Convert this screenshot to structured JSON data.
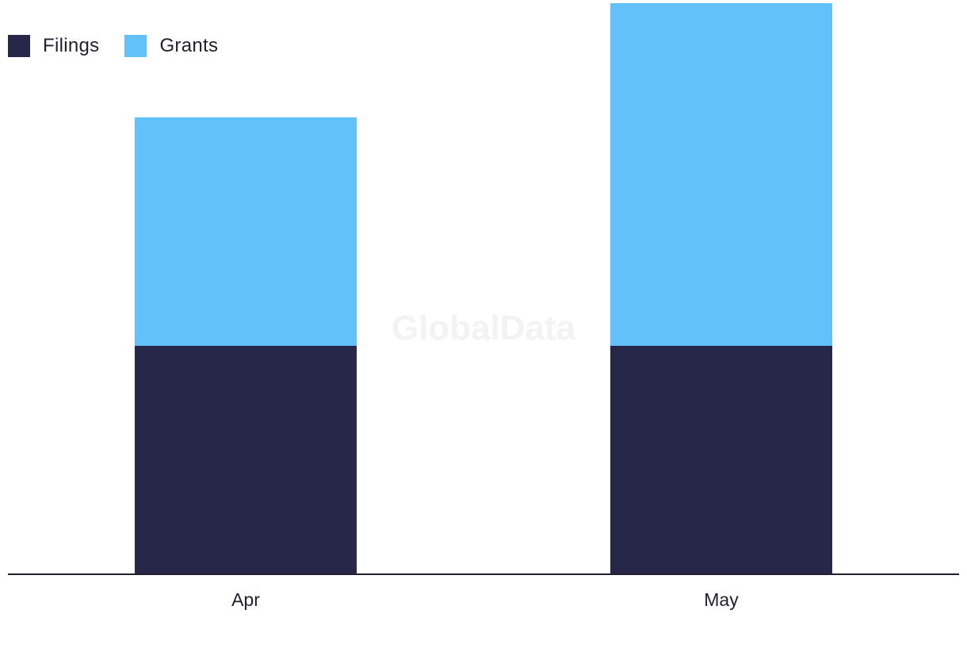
{
  "watermark": "GlobalData",
  "chart_data": {
    "type": "bar",
    "stacked": true,
    "categories": [
      "Apr",
      "May"
    ],
    "series": [
      {
        "name": "Filings",
        "color": "#272849",
        "values": [
          2,
          2
        ]
      },
      {
        "name": "Grants",
        "color": "#62c1f8",
        "values": [
          2,
          3
        ]
      }
    ],
    "ylim": [
      0,
      5
    ],
    "grid": false,
    "legend_position": "top-left",
    "title": "",
    "xlabel": "",
    "ylabel": ""
  }
}
